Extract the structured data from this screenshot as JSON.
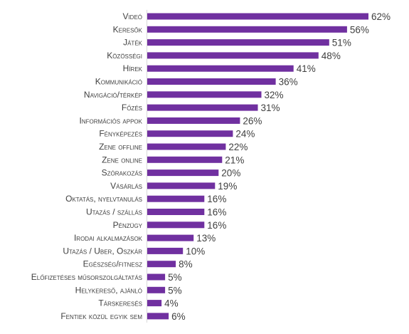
{
  "chart_data": {
    "type": "bar",
    "orientation": "horizontal",
    "unit": "%",
    "xlim": [
      0,
      62
    ],
    "grid": false,
    "legend": "none",
    "bar_color": "#7030A0",
    "text_color": "#404040",
    "categories": [
      "Videó",
      "Keresők",
      "Játék",
      "Közösségi",
      "Hírek",
      "Kommunikáció",
      "Navigáció/térkép",
      "Főzés",
      "Információs appok",
      "Fényképezés",
      "Zene offline",
      "Zene online",
      "Szórakozás",
      "Vásárlás",
      "Oktatás, nyelvtanulás",
      "Utazás / szállás",
      "Pénzügy",
      "Irodai alkalmazások",
      "Utazás / Uber, Oszkár",
      "Egészség/fitnesz",
      "Előfizetéses műsorszolgáltatás",
      "Helykereső, ajánló",
      "Társkeresés",
      "Fentiek közül egyik sem"
    ],
    "values": [
      62,
      56,
      51,
      48,
      41,
      36,
      32,
      31,
      26,
      24,
      22,
      21,
      20,
      19,
      16,
      16,
      16,
      13,
      10,
      8,
      5,
      5,
      4,
      6
    ],
    "value_labels": [
      "62%",
      "56%",
      "51%",
      "48%",
      "41%",
      "36%",
      "32%",
      "31%",
      "26%",
      "24%",
      "22%",
      "21%",
      "20%",
      "19%",
      "16%",
      "16%",
      "16%",
      "13%",
      "10%",
      "8%",
      "5%",
      "5%",
      "4%",
      "6%"
    ]
  }
}
